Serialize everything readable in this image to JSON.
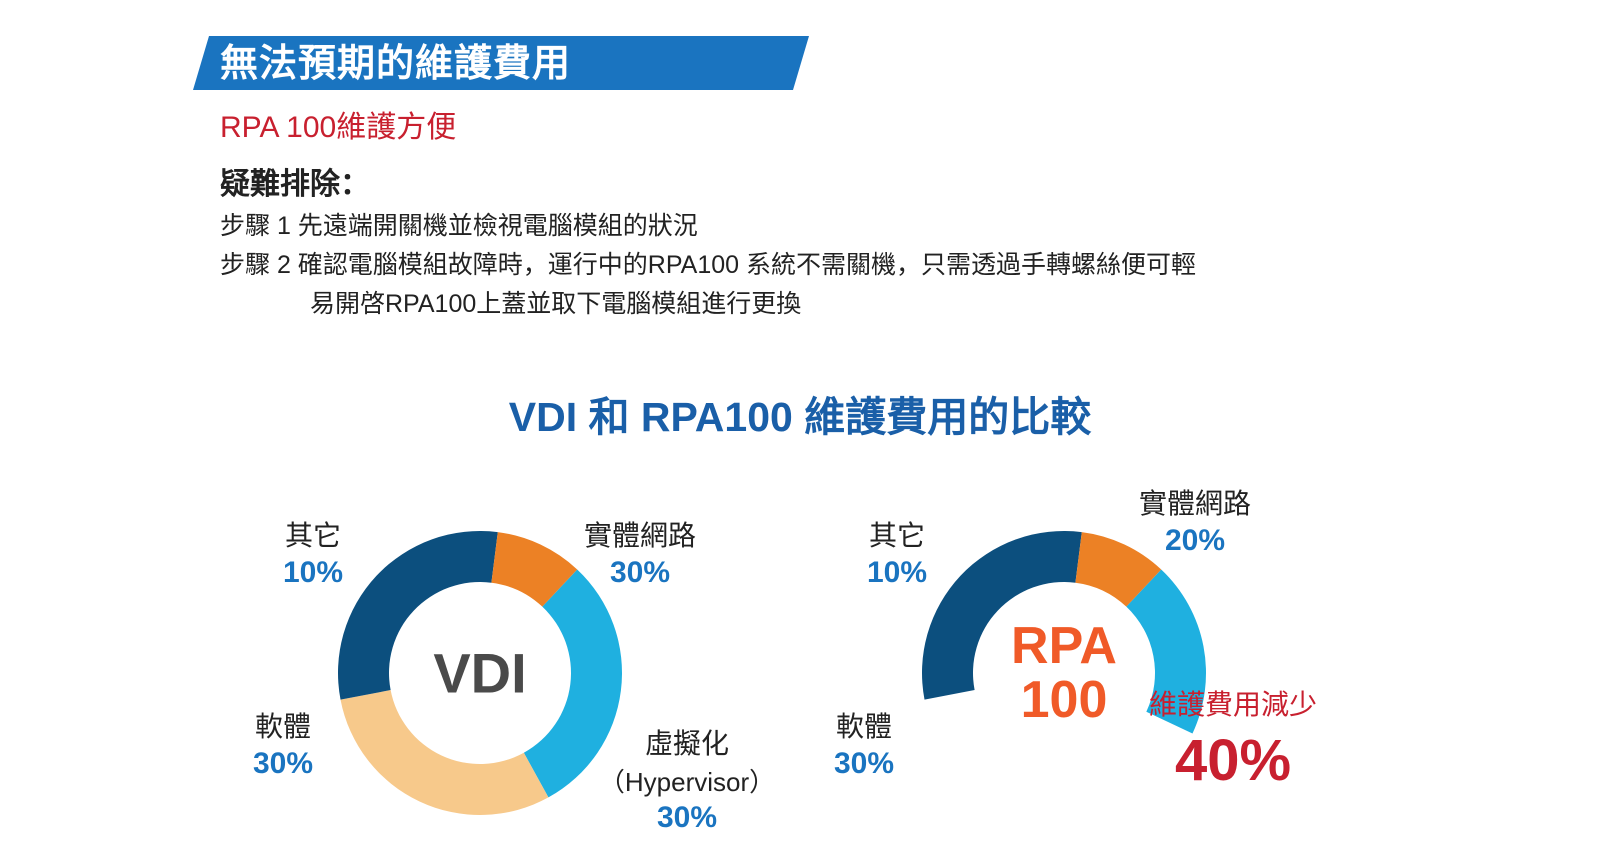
{
  "header": {
    "banner_title": "無法預期的維護費用",
    "subtitle": "RPA 100維護方便"
  },
  "troubleshoot": {
    "heading": "疑難排除：",
    "step1": "步驟 1 先遠端開關機並檢視電腦模組的狀況",
    "step2": "步驟 2 確認電腦模組故障時，運行中的RPA100 系統不需關機，只需透過手轉螺絲便可輕",
    "step2_cont": "易開啓RPA100上蓋並取下電腦模組進行更換"
  },
  "chart_data": [
    {
      "type": "pie",
      "title": "VDI 和 RPA100 維護費用的比較",
      "center_label": "VDI",
      "slices": [
        {
          "name": "實體網路",
          "value": 30,
          "label": "30%",
          "color": "#1fb0e0"
        },
        {
          "name": "虛擬化",
          "sub": "（Hypervisor）",
          "value": 30,
          "label": "30%",
          "color": "#f7c98b"
        },
        {
          "name": "軟體",
          "value": 30,
          "label": "30%",
          "color": "#0c4f7e"
        },
        {
          "name": "其它",
          "value": 10,
          "label": "10%",
          "color": "#ec8125"
        }
      ]
    },
    {
      "type": "pie",
      "center_label_line1": "RPA",
      "center_label_line2": "100",
      "slices": [
        {
          "name": "實體網路",
          "value": 20,
          "label": "20%",
          "color": "#1fb0e0"
        },
        {
          "name": "維護費用減少",
          "value": 40,
          "label": "40%",
          "color": "none"
        },
        {
          "name": "軟體",
          "value": 30,
          "label": "30%",
          "color": "#0c4f7e"
        },
        {
          "name": "其它",
          "value": 10,
          "label": "10%",
          "color": "#ec8125"
        }
      ]
    }
  ]
}
